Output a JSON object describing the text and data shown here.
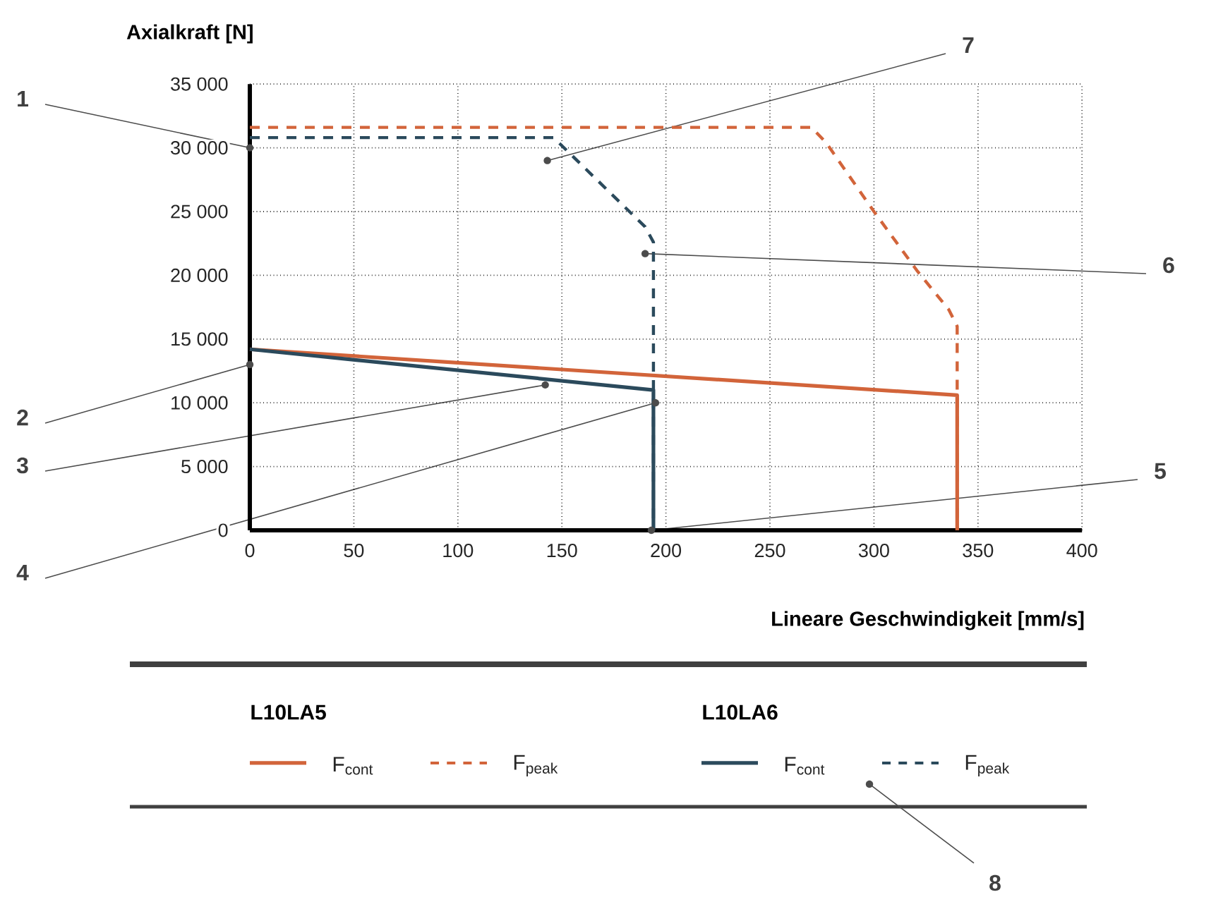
{
  "chart_data": {
    "type": "line",
    "xlabel": "Lineare Geschwindigkeit [mm/s]",
    "ylabel": "Axialkraft [N]",
    "xlim": [
      0,
      400
    ],
    "ylim": [
      0,
      35000
    ],
    "xticks": [
      0,
      50,
      100,
      150,
      200,
      250,
      300,
      350,
      400
    ],
    "yticks": [
      0,
      {
        "value": 5000,
        "label": "5 000"
      },
      {
        "value": 10000,
        "label": "10 000"
      },
      {
        "value": 15000,
        "label": "15 000"
      },
      {
        "value": 20000,
        "label": "20 000"
      },
      {
        "value": 25000,
        "label": "25 000"
      },
      {
        "value": 30000,
        "label": "30 000"
      },
      {
        "value": 35000,
        "label": "35 000"
      }
    ],
    "grid": true,
    "legend": "bottom",
    "marker": "none",
    "series": [
      {
        "name": "F$_{cont}$",
        "color": "#d2643a",
        "line_style": "solid",
        "x": [
          0,
          340,
          340
        ],
        "values": [
          14200,
          10600,
          0
        ]
      },
      {
        "name": "F$_{peak}$",
        "color": "#d2643a",
        "line_style": "dashed",
        "x": [
          0,
          270,
          277,
          300,
          321,
          336,
          340,
          340
        ],
        "values": [
          31600,
          31600,
          30400,
          25000,
          20300,
          17300,
          16000,
          0
        ]
      },
      {
        "name": "F$_{cont}$",
        "color": "#2b4a5c",
        "line_style": "solid",
        "x": [
          0,
          194,
          194
        ],
        "values": [
          14200,
          11000,
          0
        ]
      },
      {
        "name": "F$_{peak}$",
        "color": "#2b4a5c",
        "line_style": "dashed",
        "x": [
          0,
          146,
          190,
          194,
          194
        ],
        "values": [
          30800,
          30800,
          23800,
          22600,
          0
        ]
      }
    ],
    "annotations": [
      {
        "text": "1",
        "x": 0,
        "y": 30000
      },
      {
        "text": "2",
        "x": 0,
        "y": 13000
      },
      {
        "text": "3",
        "x": 142,
        "y": 11400
      },
      {
        "text": "4",
        "x": 195,
        "y": 10000
      },
      {
        "text": "5",
        "x": 193,
        "y": 0
      },
      {
        "text": "6",
        "x": 190,
        "y": 21700
      },
      {
        "text": "7",
        "x": 143,
        "y": 29000
      },
      "8",
      "L10LA5",
      "L10LA6"
    ]
  }
}
